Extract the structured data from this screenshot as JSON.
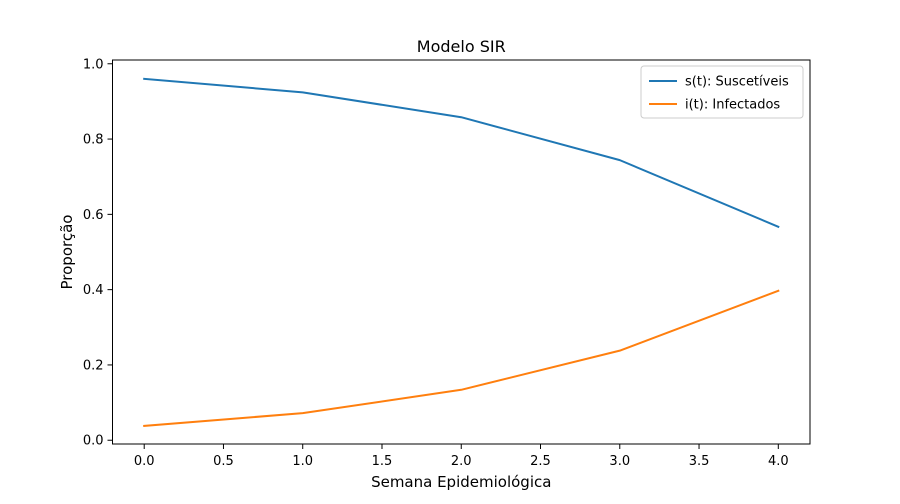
{
  "chart_data": {
    "type": "line",
    "title": "Modelo SIR",
    "xlabel": "Semana Epidemiológica",
    "ylabel": "Proporção",
    "xlim": [
      -0.2,
      4.2
    ],
    "ylim": [
      -0.01,
      1.01
    ],
    "x": [
      0,
      1,
      2,
      3,
      4
    ],
    "x_ticks": [
      "0.0",
      "0.5",
      "1.0",
      "1.5",
      "2.0",
      "2.5",
      "3.0",
      "3.5",
      "4.0"
    ],
    "y_ticks": [
      "0.0",
      "0.2",
      "0.4",
      "0.6",
      "0.8",
      "1.0"
    ],
    "grid": false,
    "legend_position": "top-right",
    "series": [
      {
        "name": "s(t): Suscetíveis",
        "color": "#1f77b4",
        "values": [
          0.96,
          0.924,
          0.858,
          0.744,
          0.567
        ]
      },
      {
        "name": "i(t): Infectados",
        "color": "#ff7f0e",
        "values": [
          0.038,
          0.072,
          0.134,
          0.238,
          0.397
        ]
      }
    ]
  }
}
